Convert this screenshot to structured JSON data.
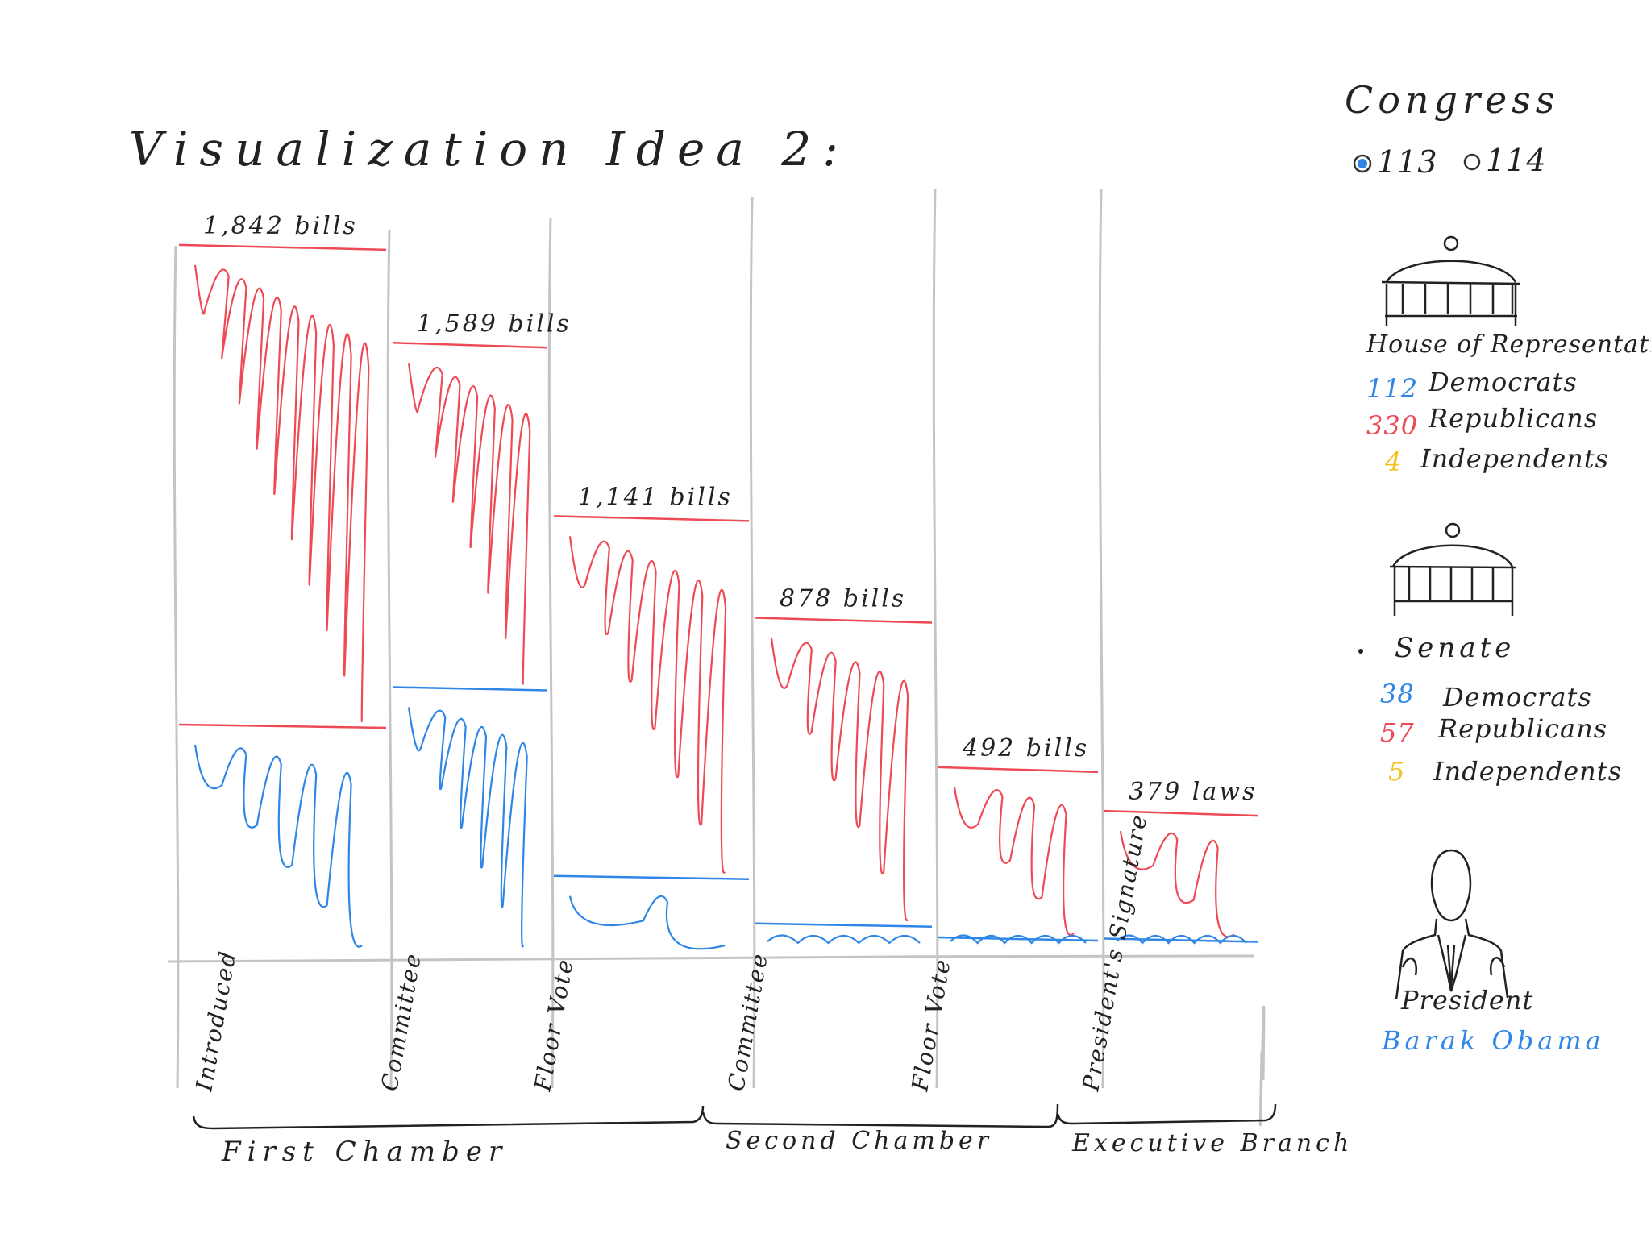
{
  "title": "Visualization Idea 2:",
  "sidebar": {
    "heading": "Congress",
    "options": [
      {
        "label": "113",
        "selected": true
      },
      {
        "label": "114",
        "selected": false
      }
    ],
    "house": {
      "name": "House of Representatives",
      "democrats": "112",
      "democrats_label": "Democrats",
      "republicans": "330",
      "republicans_label": "Republicans",
      "independents": "4",
      "independents_label": "Independents"
    },
    "senate": {
      "name": "Senate",
      "democrats": "38",
      "democrats_label": "Democrats",
      "republicans": "57",
      "republicans_label": "Republicans",
      "independents": "5",
      "independents_label": "Independents"
    },
    "president": {
      "label": "President",
      "name": "Barak Obama"
    }
  },
  "colors": {
    "republican": "#ee4a55",
    "democrat": "#2f86e6",
    "independent": "#f2c21b",
    "ink": "#222222",
    "gridline": "#c4c4c4"
  },
  "chart_data": {
    "type": "bar",
    "categories": [
      "Introduced",
      "Committee",
      "Floor Vote",
      "Committee",
      "Floor Vote",
      "President's Signature"
    ],
    "bar_labels": [
      "1,842 bills",
      "1,589 bills",
      "1,141 bills",
      "878 bills",
      "492 bills",
      "379 laws"
    ],
    "totals": [
      1842,
      1589,
      1141,
      878,
      492,
      379
    ],
    "series": [
      {
        "name": "Republicans",
        "color": "#ee4a55",
        "values": [
          1240,
          890,
          930,
          790,
          440,
          330
        ]
      },
      {
        "name": "Democrats",
        "color": "#2f86e6",
        "values": [
          602,
          699,
          211,
          88,
          52,
          49
        ]
      }
    ],
    "groups": [
      {
        "label": "First Chamber",
        "span": [
          0,
          2
        ]
      },
      {
        "label": "Second Chamber",
        "span": [
          3,
          4
        ]
      },
      {
        "label": "Executive Branch",
        "span": [
          5,
          5
        ]
      }
    ],
    "ylim": [
      0,
      2000
    ],
    "grid": false,
    "legend": "none"
  }
}
